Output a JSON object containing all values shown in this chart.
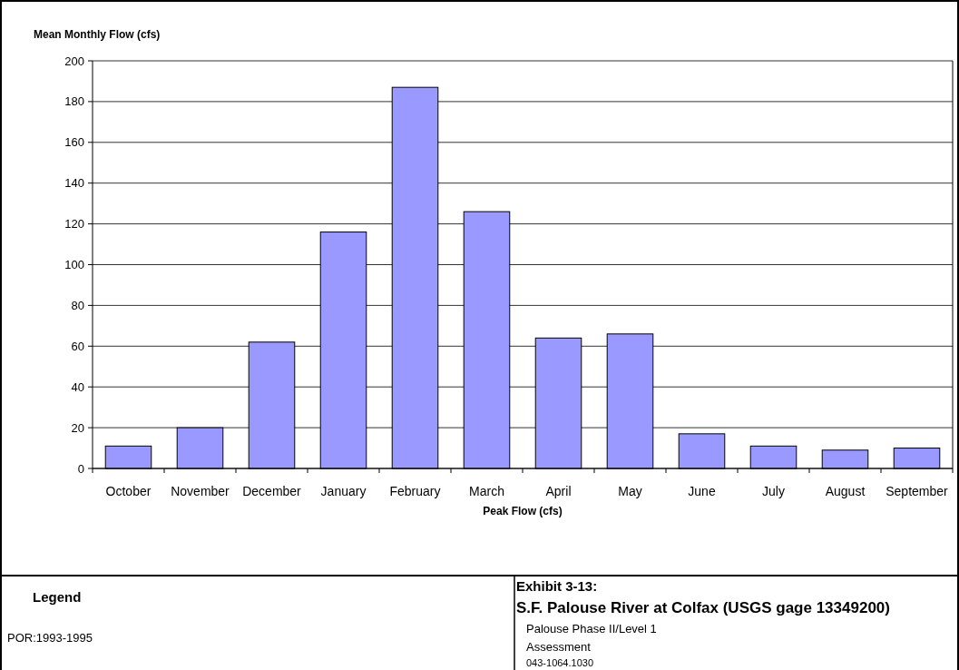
{
  "chart_data": {
    "type": "bar",
    "title": "Exhibit 3-13:",
    "subtitle": "S.F. Palouse River at Colfax (USGS gage 13349200)",
    "ylabel": "Mean Monthly Flow (cfs)",
    "xlabel": "Peak Flow (cfs)",
    "categories": [
      "October",
      "November",
      "December",
      "January",
      "February",
      "March",
      "April",
      "May",
      "June",
      "July",
      "August",
      "September"
    ],
    "values": [
      11,
      20,
      62,
      116,
      187,
      126,
      64,
      66,
      17,
      11,
      9,
      10
    ],
    "color": "#9999ff",
    "ylim": [
      0,
      200
    ],
    "yticks": [
      0,
      20,
      40,
      60,
      80,
      100,
      120,
      140,
      160,
      180,
      200
    ],
    "grid": "y",
    "annotations": [
      "Legend",
      "POR:1993-1995",
      "Palouse Phase II/Level 1",
      "Assessment",
      "043-1064.1030"
    ]
  }
}
